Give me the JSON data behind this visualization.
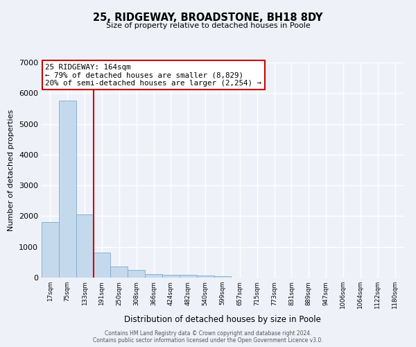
{
  "title": "25, RIDGEWAY, BROADSTONE, BH18 8DY",
  "subtitle": "Size of property relative to detached houses in Poole",
  "xlabel": "Distribution of detached houses by size in Poole",
  "ylabel": "Number of detached properties",
  "bar_values": [
    1800,
    5750,
    2060,
    820,
    370,
    240,
    115,
    95,
    80,
    60,
    50,
    0,
    0,
    0,
    0,
    0,
    0,
    0,
    0,
    0,
    0
  ],
  "bar_labels": [
    "17sqm",
    "75sqm",
    "133sqm",
    "191sqm",
    "250sqm",
    "308sqm",
    "366sqm",
    "424sqm",
    "482sqm",
    "540sqm",
    "599sqm",
    "657sqm",
    "715sqm",
    "773sqm",
    "831sqm",
    "889sqm",
    "947sqm",
    "1006sqm",
    "1064sqm",
    "1122sqm",
    "1180sqm"
  ],
  "bar_color": "#c5d9ed",
  "bar_edge_color": "#7aaad0",
  "vline_color": "#cc0000",
  "annotation_title": "25 RIDGEWAY: 164sqm",
  "annotation_line1": "← 79% of detached houses are smaller (8,829)",
  "annotation_line2": "20% of semi-detached houses are larger (2,254) →",
  "annotation_box_color": "#cc0000",
  "ylim": [
    0,
    7000
  ],
  "yticks": [
    0,
    1000,
    2000,
    3000,
    4000,
    5000,
    6000,
    7000
  ],
  "footer1": "Contains HM Land Registry data © Crown copyright and database right 2024.",
  "footer2": "Contains public sector information licensed under the Open Government Licence v3.0.",
  "background_color": "#eef2f8",
  "grid_color": "#ffffff"
}
